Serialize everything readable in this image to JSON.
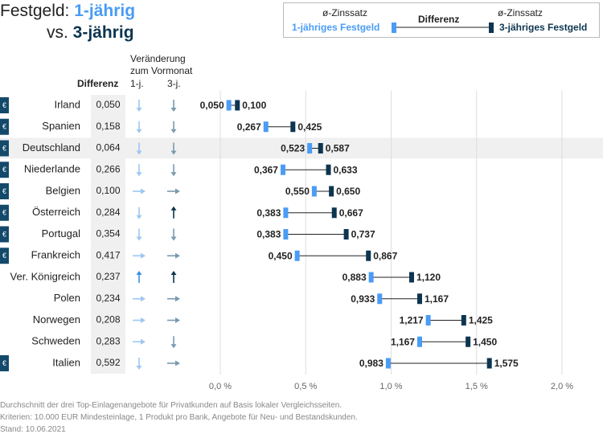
{
  "title": {
    "prefix": "Festgeld: ",
    "series1": "1-jährig",
    "line2_prefix": "vs. ",
    "series2": "3-jährig"
  },
  "legend": {
    "rate_label_1": "ø-Zinssatz",
    "rate_label_2": "ø-Zinssatz",
    "diff_label": "Differenz",
    "series1_label": "1-jähriges Festgeld",
    "series2_label": "3-jähriges Festgeld"
  },
  "headers": {
    "diff": "Differenz",
    "change_line1": "Veränderung",
    "change_line2": "zum Vormonat",
    "col_1j": "1-j.",
    "col_3j": "3-j."
  },
  "colors": {
    "series1": "#4a9cf5",
    "series2": "#0d3550",
    "euro_badge": "#134a6b",
    "highlight_row": "#f0f0f0",
    "diff_column": "#f0f0f0"
  },
  "chart_data": {
    "type": "dumbbell",
    "xlim": [
      0,
      2.0
    ],
    "x_ticks": [
      0,
      0.5,
      1.0,
      1.5,
      2.0
    ],
    "x_tick_labels": [
      "0,0 %",
      "0,5 %",
      "1,0 %",
      "1,5 %",
      "2,0 %"
    ],
    "highlight_country": "Deutschland",
    "rows": [
      {
        "country": "Irland",
        "euro": true,
        "diff": "0,050",
        "rate_1y": 0.05,
        "rate_3y": 0.1,
        "label_1y": "0,050",
        "label_3y": "0,100",
        "chg_1y": "down",
        "chg_3y": "down"
      },
      {
        "country": "Spanien",
        "euro": true,
        "diff": "0,158",
        "rate_1y": 0.267,
        "rate_3y": 0.425,
        "label_1y": "0,267",
        "label_3y": "0,425",
        "chg_1y": "down",
        "chg_3y": "down"
      },
      {
        "country": "Deutschland",
        "euro": true,
        "diff": "0,064",
        "rate_1y": 0.523,
        "rate_3y": 0.587,
        "label_1y": "0,523",
        "label_3y": "0,587",
        "chg_1y": "down",
        "chg_3y": "down"
      },
      {
        "country": "Niederlande",
        "euro": true,
        "diff": "0,266",
        "rate_1y": 0.367,
        "rate_3y": 0.633,
        "label_1y": "0,367",
        "label_3y": "0,633",
        "chg_1y": "down",
        "chg_3y": "down"
      },
      {
        "country": "Belgien",
        "euro": true,
        "diff": "0,100",
        "rate_1y": 0.55,
        "rate_3y": 0.65,
        "label_1y": "0,550",
        "label_3y": "0,650",
        "chg_1y": "right",
        "chg_3y": "right"
      },
      {
        "country": "Österreich",
        "euro": true,
        "diff": "0,284",
        "rate_1y": 0.383,
        "rate_3y": 0.667,
        "label_1y": "0,383",
        "label_3y": "0,667",
        "chg_1y": "down",
        "chg_3y": "up"
      },
      {
        "country": "Portugal",
        "euro": true,
        "diff": "0,354",
        "rate_1y": 0.383,
        "rate_3y": 0.737,
        "label_1y": "0,383",
        "label_3y": "0,737",
        "chg_1y": "down",
        "chg_3y": "down"
      },
      {
        "country": "Frankreich",
        "euro": true,
        "diff": "0,417",
        "rate_1y": 0.45,
        "rate_3y": 0.867,
        "label_1y": "0,450",
        "label_3y": "0,867",
        "chg_1y": "right",
        "chg_3y": "right"
      },
      {
        "country": "Ver. Königreich",
        "euro": false,
        "diff": "0,237",
        "rate_1y": 0.883,
        "rate_3y": 1.12,
        "label_1y": "0,883",
        "label_3y": "1,120",
        "chg_1y": "up",
        "chg_3y": "up"
      },
      {
        "country": "Polen",
        "euro": false,
        "diff": "0,234",
        "rate_1y": 0.933,
        "rate_3y": 1.167,
        "label_1y": "0,933",
        "label_3y": "1,167",
        "chg_1y": "right",
        "chg_3y": "right"
      },
      {
        "country": "Norwegen",
        "euro": false,
        "diff": "0,208",
        "rate_1y": 1.217,
        "rate_3y": 1.425,
        "label_1y": "1,217",
        "label_3y": "1,425",
        "chg_1y": "right",
        "chg_3y": "right"
      },
      {
        "country": "Schweden",
        "euro": false,
        "diff": "0,283",
        "rate_1y": 1.167,
        "rate_3y": 1.45,
        "label_1y": "1,167",
        "label_3y": "1,450",
        "chg_1y": "right",
        "chg_3y": "down"
      },
      {
        "country": "Italien",
        "euro": true,
        "diff": "0,592",
        "rate_1y": 0.983,
        "rate_3y": 1.575,
        "label_1y": "0,983",
        "label_3y": "1,575",
        "chg_1y": "down",
        "chg_3y": "right"
      }
    ]
  },
  "euro_symbol": "€",
  "footnotes": [
    "Durchschnitt der drei Top-Einlagenangebote für Privatkunden auf Basis lokaler Vergleichsseiten.",
    "Kriterien: 10.000 EUR Mindesteinlage, 1 Produkt pro Bank, Angebote für Neu- und Bestandskunden.",
    "Stand: 10.06.2021"
  ]
}
